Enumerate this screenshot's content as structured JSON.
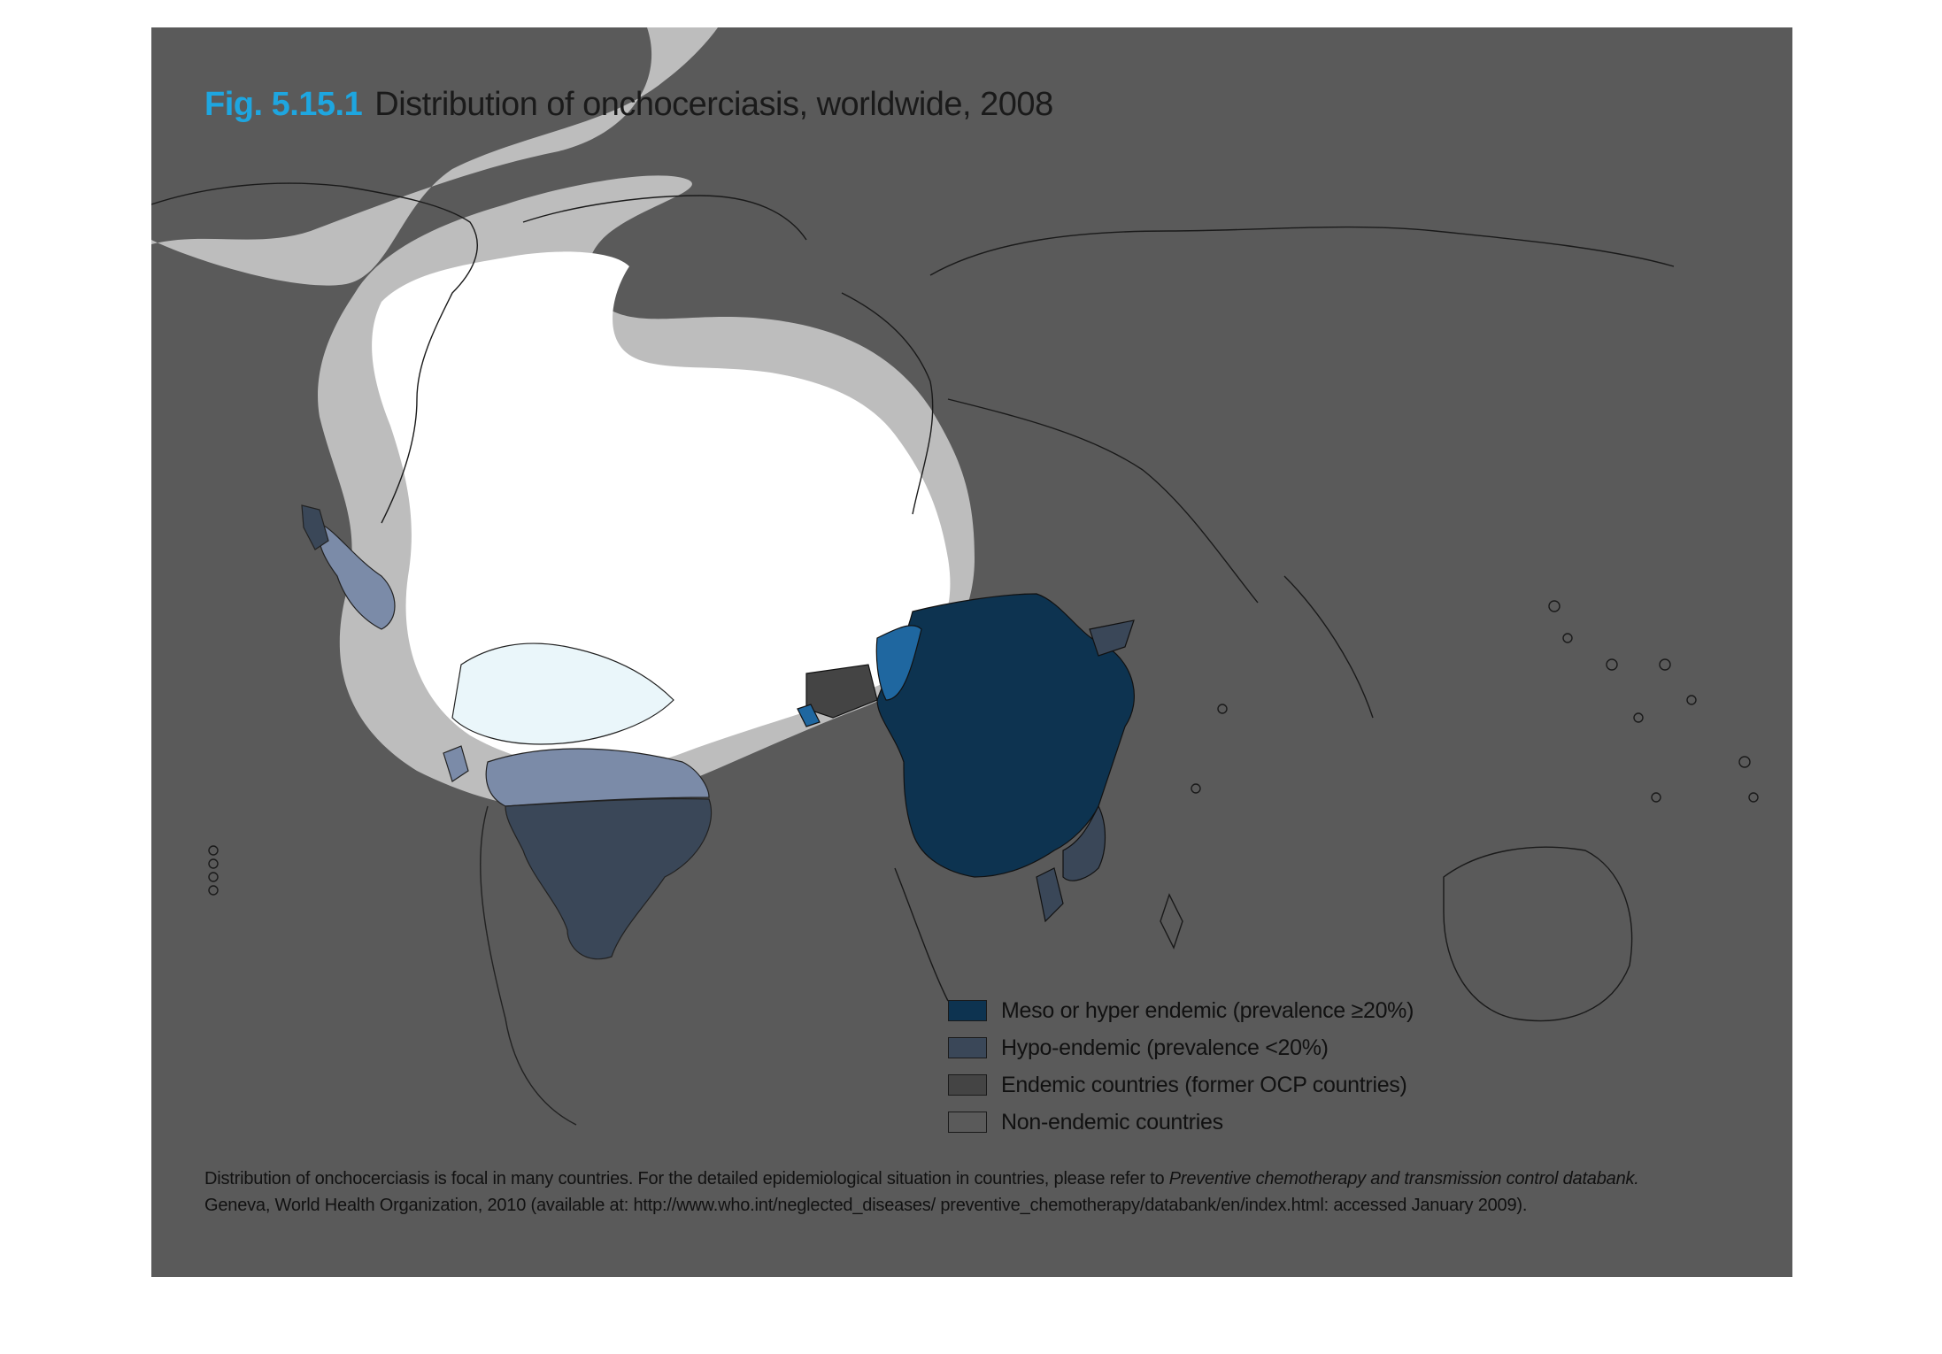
{
  "figure": {
    "number": "Fig. 5.15.1",
    "title": "Distribution of onchocerciasis, worldwide, 2008"
  },
  "legend": {
    "items": [
      {
        "label": "Meso or hyper endemic (prevalence ≥20%)",
        "color": "#0d3350"
      },
      {
        "label": "Hypo-endemic (prevalence <20%)",
        "color": "#3a4758"
      },
      {
        "label": "Endemic countries (former OCP countries)",
        "color": "#444444"
      },
      {
        "label": "Non-endemic countries",
        "color": "#5a5a5a"
      }
    ]
  },
  "caption": {
    "text1": "Distribution of onchocerciasis is focal in many countries. For the detailed epidemiological situation in countries, please refer to ",
    "italic": "Preventive chemotherapy and transmission control databank.",
    "text2": "Geneva, World Health Organization, 2010 (available at: http://www.who.int/neglected_diseases/ preventive_chemotherapy/databank/en/index.html: accessed January 2009)."
  },
  "colors": {
    "panel_background": "#5a5a5a",
    "meso_hyper": "#0d3350",
    "hypo": "#3a4758",
    "former_ocp": "#444444",
    "title_accent": "#1ea6e0"
  }
}
